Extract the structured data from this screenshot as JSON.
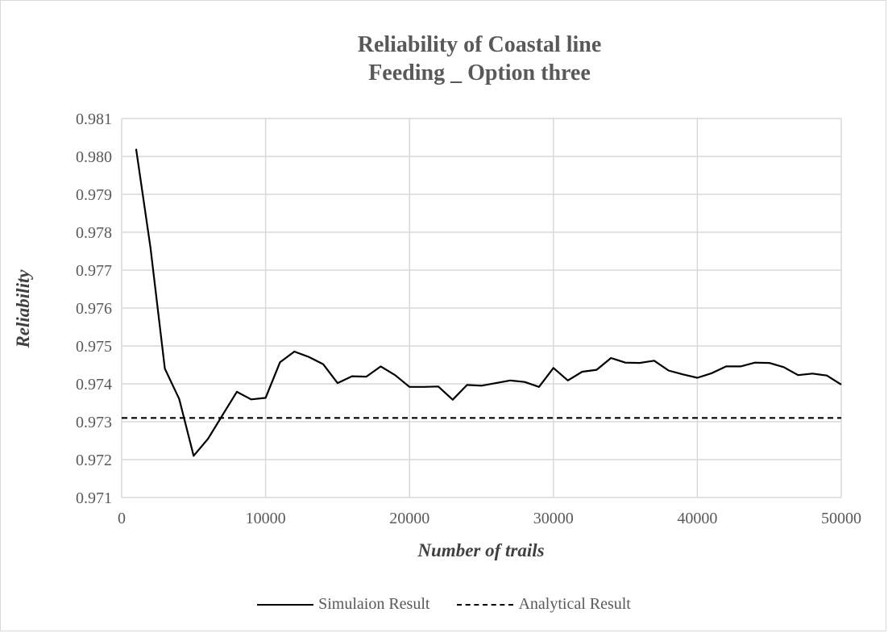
{
  "chart_data": {
    "type": "line",
    "title": [
      "Reliability of Coastal line",
      "Feeding _ Option three"
    ],
    "xlabel": "Number of trails",
    "ylabel": "Reliability",
    "xlim": [
      0,
      50000
    ],
    "ylim": [
      0.971,
      0.981
    ],
    "x_ticks": [
      "0",
      "10000",
      "20000",
      "30000",
      "40000",
      "50000"
    ],
    "y_ticks": [
      "0.971",
      "0.972",
      "0.973",
      "0.974",
      "0.975",
      "0.976",
      "0.977",
      "0.978",
      "0.979",
      "0.980",
      "0.981"
    ],
    "grid": true,
    "legend_position": "bottom",
    "series": [
      {
        "name": "Simulaion Result",
        "style": "solid",
        "color": "#000000",
        "x": [
          1000,
          2000,
          3000,
          4000,
          5000,
          6000,
          7000,
          8000,
          9000,
          10000,
          11000,
          12000,
          13000,
          14000,
          15000,
          16000,
          17000,
          18000,
          19000,
          20000,
          21000,
          22000,
          23000,
          24000,
          25000,
          26000,
          27000,
          28000,
          29000,
          30000,
          31000,
          32000,
          33000,
          34000,
          35000,
          36000,
          37000,
          38000,
          39000,
          40000,
          41000,
          42000,
          43000,
          44000,
          45000,
          46000,
          47000,
          48000,
          49000,
          50000
        ],
        "y": [
          0.9802,
          0.9776,
          0.9744,
          0.9736,
          0.9721,
          0.97255,
          0.97317,
          0.97379,
          0.97359,
          0.97363,
          0.97457,
          0.97485,
          0.97471,
          0.97452,
          0.97402,
          0.9742,
          0.97419,
          0.97446,
          0.97423,
          0.97392,
          0.97392,
          0.97393,
          0.97358,
          0.97397,
          0.97395,
          0.97402,
          0.97409,
          0.97405,
          0.97392,
          0.97442,
          0.97409,
          0.97432,
          0.97437,
          0.97468,
          0.97456,
          0.97455,
          0.97461,
          0.97435,
          0.97425,
          0.97416,
          0.97428,
          0.97446,
          0.97446,
          0.97456,
          0.97455,
          0.97444,
          0.97423,
          0.97427,
          0.97422,
          0.97398
        ]
      },
      {
        "name": "Analytical Result",
        "style": "dashed",
        "color": "#000000",
        "x": [
          0,
          50000
        ],
        "y": [
          0.9731,
          0.9731
        ]
      }
    ]
  }
}
